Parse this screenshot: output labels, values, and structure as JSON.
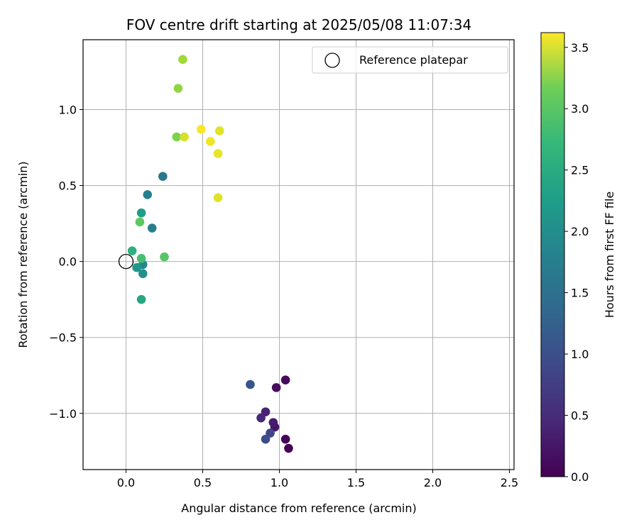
{
  "chart_data": {
    "type": "scatter",
    "title": "FOV centre drift starting at 2025/05/08 11:07:34",
    "xlabel": "Angular distance from reference (arcmin)",
    "ylabel": "Rotation from reference (arcmin)",
    "xlim": [
      -0.28,
      2.53
    ],
    "ylim": [
      -1.37,
      1.46
    ],
    "xticks": [
      0.0,
      0.5,
      1.0,
      1.5,
      2.0,
      2.5
    ],
    "xtick_labels": [
      "0.0",
      "0.5",
      "1.0",
      "1.5",
      "2.0",
      "2.5"
    ],
    "yticks": [
      -1.0,
      -0.5,
      0.0,
      0.5,
      1.0
    ],
    "ytick_labels": [
      "−1.0",
      "−0.5",
      "0.0",
      "0.5",
      "1.0"
    ],
    "grid": true,
    "legend_position": "top-right",
    "legend": [
      "Reference platepar"
    ],
    "reference_point": {
      "x": 0.0,
      "y": 0.0
    },
    "colorbar": {
      "label": "Hours from first FF file",
      "range": [
        0.0,
        3.62
      ],
      "ticks": [
        0.0,
        0.5,
        1.0,
        1.5,
        2.0,
        2.5,
        3.0,
        3.5
      ],
      "tick_labels": [
        "0.0",
        "0.5",
        "1.0",
        "1.5",
        "2.0",
        "2.5",
        "3.0",
        "3.5"
      ],
      "colormap": "viridis"
    },
    "points": [
      {
        "x": 1.06,
        "y": -1.23,
        "hours": 0.0
      },
      {
        "x": 1.04,
        "y": -1.17,
        "hours": 0.05
      },
      {
        "x": 1.04,
        "y": -0.78,
        "hours": 0.1
      },
      {
        "x": 0.98,
        "y": -0.83,
        "hours": 0.12
      },
      {
        "x": 0.97,
        "y": -1.09,
        "hours": 0.2
      },
      {
        "x": 0.96,
        "y": -1.06,
        "hours": 0.28
      },
      {
        "x": 0.91,
        "y": -0.99,
        "hours": 0.35
      },
      {
        "x": 0.88,
        "y": -1.03,
        "hours": 0.42
      },
      {
        "x": 0.94,
        "y": -1.13,
        "hours": 0.75
      },
      {
        "x": 0.91,
        "y": -1.17,
        "hours": 0.85
      },
      {
        "x": 0.81,
        "y": -0.81,
        "hours": 0.95
      },
      {
        "x": 0.24,
        "y": 0.56,
        "hours": 1.45
      },
      {
        "x": 0.17,
        "y": 0.22,
        "hours": 1.55
      },
      {
        "x": 0.14,
        "y": 0.44,
        "hours": 1.6
      },
      {
        "x": 0.11,
        "y": -0.02,
        "hours": 1.7
      },
      {
        "x": 0.11,
        "y": -0.08,
        "hours": 1.8
      },
      {
        "x": 0.07,
        "y": -0.04,
        "hours": 1.9
      },
      {
        "x": 0.1,
        "y": 0.32,
        "hours": 2.0
      },
      {
        "x": 0.1,
        "y": -0.25,
        "hours": 2.15
      },
      {
        "x": 0.04,
        "y": 0.07,
        "hours": 2.3
      },
      {
        "x": 0.1,
        "y": 0.02,
        "hours": 2.55
      },
      {
        "x": 0.25,
        "y": 0.03,
        "hours": 2.65
      },
      {
        "x": 0.09,
        "y": 0.26,
        "hours": 2.7
      },
      {
        "x": 0.33,
        "y": 0.82,
        "hours": 2.9
      },
      {
        "x": 0.34,
        "y": 1.14,
        "hours": 3.0
      },
      {
        "x": 0.37,
        "y": 1.33,
        "hours": 3.1
      },
      {
        "x": 0.38,
        "y": 0.82,
        "hours": 3.4
      },
      {
        "x": 0.6,
        "y": 0.42,
        "hours": 3.45
      },
      {
        "x": 0.61,
        "y": 0.86,
        "hours": 3.45
      },
      {
        "x": 0.6,
        "y": 0.71,
        "hours": 3.5
      },
      {
        "x": 0.55,
        "y": 0.79,
        "hours": 3.55
      },
      {
        "x": 0.49,
        "y": 0.87,
        "hours": 3.6
      }
    ]
  }
}
